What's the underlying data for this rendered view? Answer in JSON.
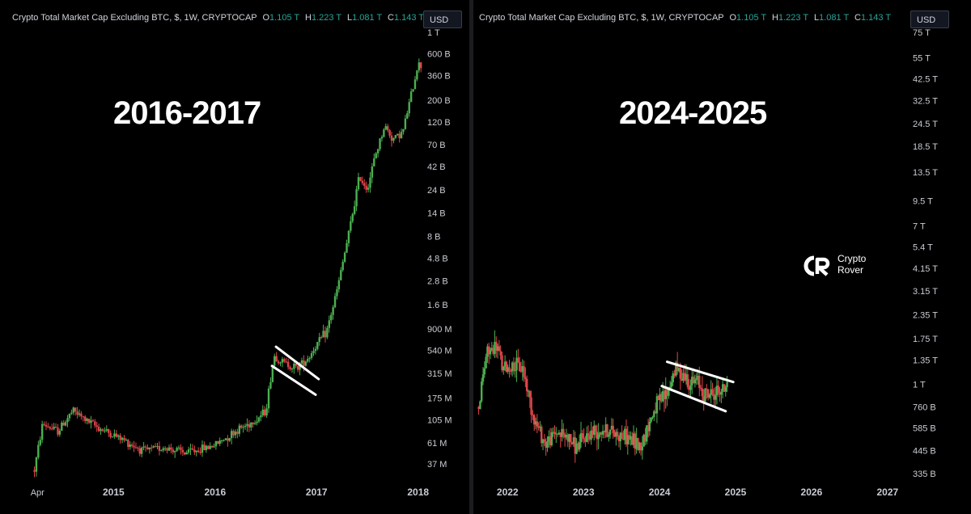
{
  "panels": {
    "left": {
      "legend": {
        "title": "Crypto Total Market Cap Excluding BTC, $, 1W, CRYPTOCAP",
        "open_label": "O",
        "open": "1.105 T",
        "high_label": "H",
        "high": "1.223 T",
        "low_label": "L",
        "low": "1.081 T",
        "close_label": "C",
        "close": "1.143 T"
      },
      "currency": "USD",
      "overlay_text": "2016-2017"
    },
    "right": {
      "legend": {
        "title": "Crypto Total Market Cap Excluding BTC, $, 1W, CRYPTOCAP",
        "open_label": "O",
        "open": "1.105 T",
        "high_label": "H",
        "high": "1.223 T",
        "low_label": "L",
        "low": "1.081 T",
        "close_label": "C",
        "close": "1.143 T"
      },
      "currency": "USD",
      "overlay_text": "2024-2025",
      "brand": {
        "line1": "Crypto",
        "line2": "Rover"
      }
    }
  },
  "colors": {
    "up": "#4caf50",
    "down": "#e0454a",
    "text": "#d1d4dc",
    "background": "#000000",
    "channel": "#ffffff"
  },
  "chart_data": [
    {
      "type": "candlestick",
      "scale": "log",
      "y_ticks": [
        "1 T",
        "600 B",
        "360 B",
        "200 B",
        "120 B",
        "70 B",
        "42 B",
        "24 B",
        "14 B",
        "8 B",
        "4.8 B",
        "2.8 B",
        "1.6 B",
        "900 M",
        "540 M",
        "315 M",
        "175 M",
        "105 M",
        "61 M",
        "37 M"
      ],
      "y_tick_values": [
        1000000000000,
        600000000000,
        360000000000,
        200000000000,
        120000000000,
        70000000000,
        42000000000,
        24000000000,
        14000000000,
        8000000000,
        4800000000,
        2800000000,
        1600000000,
        900000000,
        540000000,
        315000000,
        175000000,
        105000000,
        61000000,
        37000000
      ],
      "x_ticks": [
        "Apr",
        "2015",
        "2016",
        "2017",
        "2018"
      ],
      "x_tick_dates": [
        2014.25,
        2015.0,
        2016.0,
        2017.0,
        2018.0
      ],
      "anchors": [
        [
          2014.22,
          32000000.0
        ],
        [
          2014.3,
          95000000.0
        ],
        [
          2014.45,
          80000000.0
        ],
        [
          2014.6,
          130000000.0
        ],
        [
          2014.75,
          100000000.0
        ],
        [
          2014.9,
          82000000.0
        ],
        [
          2015.1,
          65000000.0
        ],
        [
          2015.3,
          50000000.0
        ],
        [
          2015.5,
          55000000.0
        ],
        [
          2015.7,
          48000000.0
        ],
        [
          2015.85,
          52000000.0
        ],
        [
          2016.0,
          58000000.0
        ],
        [
          2016.2,
          80000000.0
        ],
        [
          2016.4,
          105000000.0
        ],
        [
          2016.5,
          130000000.0
        ],
        [
          2016.58,
          480000000.0
        ],
        [
          2016.66,
          410000000.0
        ],
        [
          2016.8,
          360000000.0
        ],
        [
          2016.92,
          460000000.0
        ],
        [
          2017.0,
          620000000.0
        ],
        [
          2017.1,
          850000000.0
        ],
        [
          2017.2,
          2200000000.0
        ],
        [
          2017.33,
          10000000000.0
        ],
        [
          2017.42,
          33000000000.0
        ],
        [
          2017.5,
          25000000000.0
        ],
        [
          2017.58,
          55000000000.0
        ],
        [
          2017.67,
          110000000000.0
        ],
        [
          2017.75,
          80000000000.0
        ],
        [
          2017.85,
          95000000000.0
        ],
        [
          2017.92,
          200000000000.0
        ],
        [
          2018.0,
          480000000000.0
        ],
        [
          2018.04,
          440000000000.0
        ]
      ],
      "channel": {
        "upper": [
          [
            2016.6,
            590000000.0
          ],
          [
            2017.02,
            275000000.0
          ]
        ],
        "lower": [
          [
            2016.56,
            375000000.0
          ],
          [
            2016.99,
            190000000.0
          ]
        ]
      },
      "x_range": [
        2014.2,
        2018.05
      ]
    },
    {
      "type": "candlestick",
      "scale": "log",
      "y_ticks": [
        "75 T",
        "55 T",
        "42.5 T",
        "32.5 T",
        "24.5 T",
        "18.5 T",
        "13.5 T",
        "9.5 T",
        "7 T",
        "5.4 T",
        "4.15 T",
        "3.15 T",
        "2.35 T",
        "1.75 T",
        "1.35 T",
        "1 T",
        "760 B",
        "585 B",
        "445 B",
        "335 B"
      ],
      "y_tick_values": [
        75000000000000,
        55000000000000,
        42500000000000,
        32500000000000,
        24500000000000,
        18500000000000,
        13500000000000,
        9500000000000,
        7000000000000,
        5400000000000,
        4150000000000,
        3150000000000,
        2350000000000,
        1750000000000,
        1350000000000,
        1000000000000,
        760000000000,
        585000000000,
        445000000000,
        335000000000
      ],
      "x_ticks": [
        "2022",
        "2023",
        "2024",
        "2025",
        "2026",
        "2027"
      ],
      "x_tick_dates": [
        2022.0,
        2023.0,
        2024.0,
        2025.0,
        2026.0,
        2027.0
      ],
      "anchors": [
        [
          2021.62,
          760000000000.0
        ],
        [
          2021.72,
          1450000000000.0
        ],
        [
          2021.86,
          1600000000000.0
        ],
        [
          2021.94,
          1200000000000.0
        ],
        [
          2022.05,
          1250000000000.0
        ],
        [
          2022.2,
          1220000000000.0
        ],
        [
          2022.35,
          650000000000.0
        ],
        [
          2022.5,
          480000000000.0
        ],
        [
          2022.65,
          560000000000.0
        ],
        [
          2022.8,
          520000000000.0
        ],
        [
          2022.9,
          460000000000.0
        ],
        [
          2023.08,
          550000000000.0
        ],
        [
          2023.25,
          580000000000.0
        ],
        [
          2023.42,
          550000000000.0
        ],
        [
          2023.58,
          520000000000.0
        ],
        [
          2023.75,
          470000000000.0
        ],
        [
          2023.85,
          600000000000.0
        ],
        [
          2023.95,
          760000000000.0
        ],
        [
          2024.1,
          900000000000.0
        ],
        [
          2024.2,
          1200000000000.0
        ],
        [
          2024.3,
          1150000000000.0
        ],
        [
          2024.42,
          1000000000000.0
        ],
        [
          2024.5,
          1050000000000.0
        ],
        [
          2024.58,
          900000000000.0
        ],
        [
          2024.68,
          880000000000.0
        ],
        [
          2024.78,
          920000000000.0
        ],
        [
          2024.86,
          950000000000.0
        ],
        [
          2024.9,
          1150000000000.0
        ]
      ],
      "channel": {
        "upper": [
          [
            2024.1,
            1320000000000.0
          ],
          [
            2024.97,
            1030000000000.0
          ]
        ],
        "lower": [
          [
            2024.03,
            980000000000.0
          ],
          [
            2024.87,
            720000000000.0
          ]
        ]
      },
      "x_range": [
        2021.55,
        2027.3
      ]
    }
  ]
}
